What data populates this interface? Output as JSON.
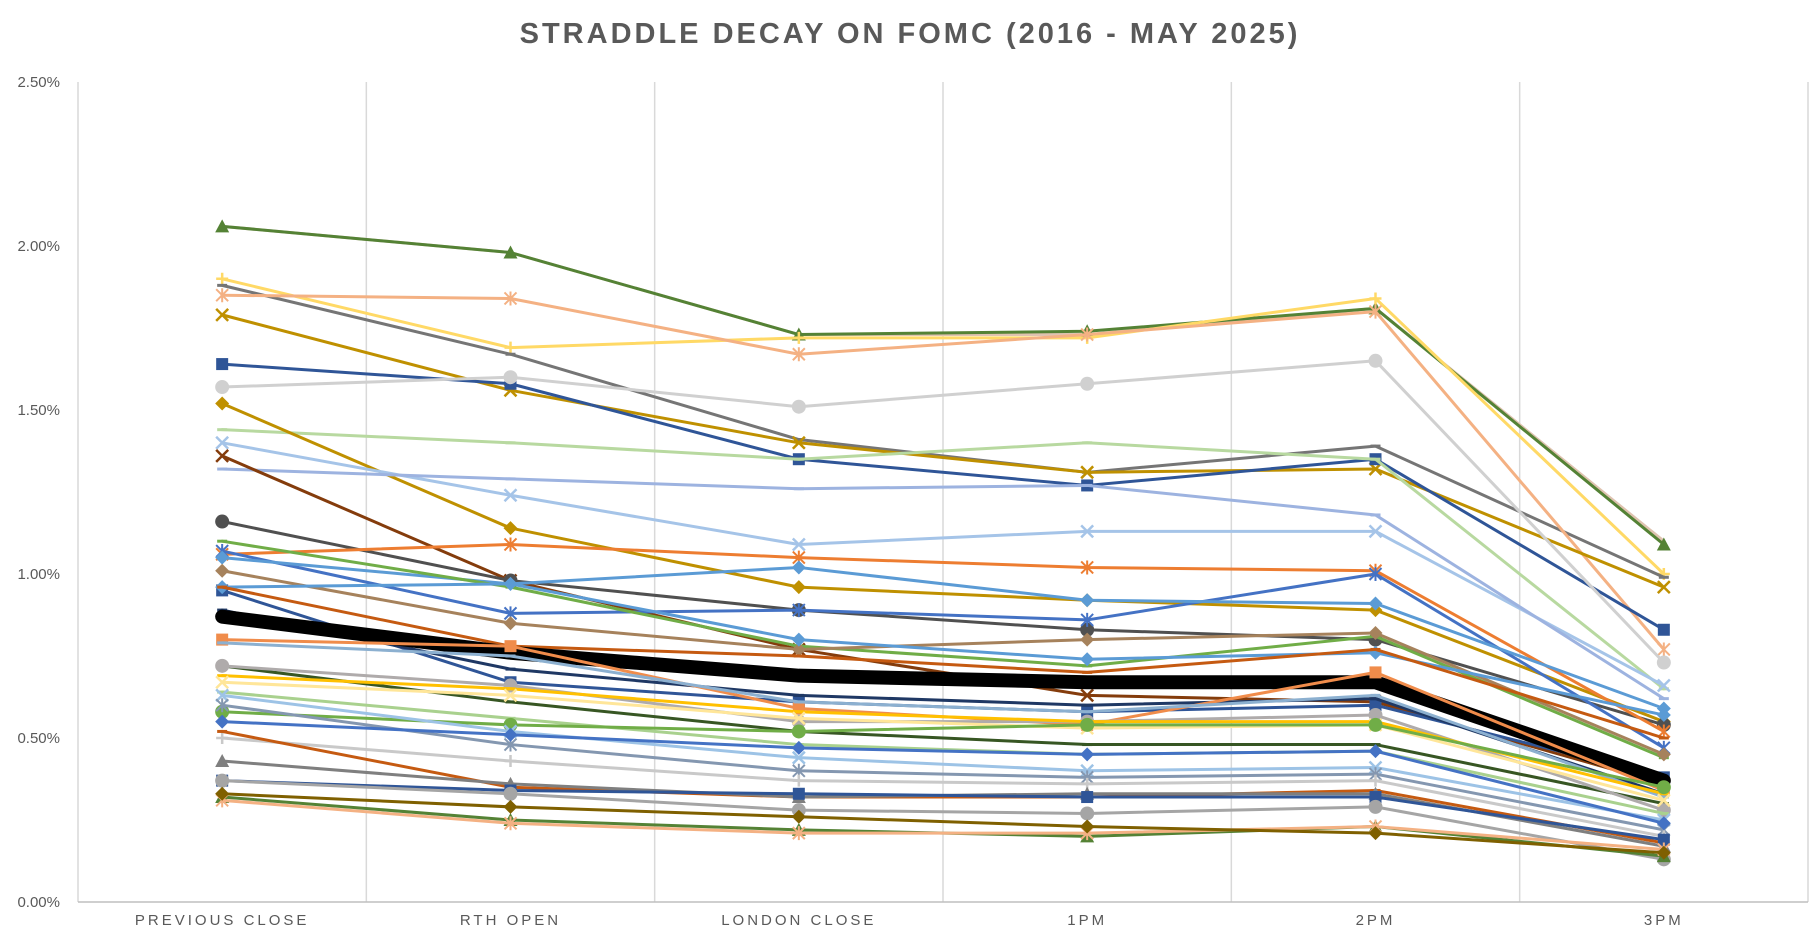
{
  "chart_data": {
    "type": "line",
    "title": "STRADDLE DECAY ON FOMC (2016 - MAY 2025)",
    "categories": [
      "PREVIOUS CLOSE",
      "RTH OPEN",
      "LONDON CLOSE",
      "1PM",
      "2PM",
      "3PM"
    ],
    "y_tick_labels": [
      "0.00%",
      "0.50%",
      "1.00%",
      "1.50%",
      "2.00%",
      "2.50%"
    ],
    "ylim": [
      0,
      2.5
    ],
    "y_unit": "percent",
    "grid": "vertical category lines",
    "legend": "none",
    "series": [
      {
        "color": "#DFC3B0",
        "marker": "none",
        "values": [
          2.06,
          1.98,
          1.73,
          1.73,
          1.81,
          1.1
        ]
      },
      {
        "color": "#548235",
        "marker": "triangle",
        "values": [
          2.06,
          1.98,
          1.73,
          1.74,
          1.81,
          1.09
        ]
      },
      {
        "color": "#FFD966",
        "marker": "plus",
        "values": [
          1.9,
          1.69,
          1.72,
          1.72,
          1.84,
          1.0
        ]
      },
      {
        "color": "#757575",
        "marker": "minus",
        "values": [
          1.88,
          1.67,
          1.41,
          1.31,
          1.39,
          0.99
        ]
      },
      {
        "color": "#F4B183",
        "marker": "asterisk",
        "values": [
          1.85,
          1.84,
          1.67,
          1.73,
          1.8,
          0.77
        ]
      },
      {
        "color": "#BF9000",
        "marker": "x",
        "values": [
          1.79,
          1.56,
          1.4,
          1.31,
          1.32,
          0.96
        ]
      },
      {
        "color": "#2F5597",
        "marker": "square",
        "values": [
          1.64,
          1.58,
          1.35,
          1.27,
          1.35,
          0.83
        ]
      },
      {
        "color": "#D0D0D0",
        "marker": "circle",
        "values": [
          1.57,
          1.6,
          1.51,
          1.58,
          1.65,
          0.73
        ]
      },
      {
        "color": "#B8D9A0",
        "marker": "minus",
        "values": [
          1.44,
          1.4,
          1.35,
          1.4,
          1.35,
          0.65
        ]
      },
      {
        "color": "#BF9000",
        "marker": "diamond",
        "values": [
          1.52,
          1.14,
          0.96,
          0.92,
          0.89,
          0.55
        ]
      },
      {
        "color": "#A5C4E8",
        "marker": "x",
        "values": [
          1.4,
          1.24,
          1.09,
          1.13,
          1.13,
          0.66
        ]
      },
      {
        "color": "#9DB3E0",
        "marker": "minus",
        "values": [
          1.32,
          1.29,
          1.26,
          1.27,
          1.18,
          0.62
        ]
      },
      {
        "color": "#843C0C",
        "marker": "x",
        "values": [
          1.36,
          0.98,
          0.77,
          0.63,
          0.61,
          0.36
        ]
      },
      {
        "color": "#505050",
        "marker": "circle",
        "values": [
          1.16,
          0.98,
          0.89,
          0.83,
          0.8,
          0.54
        ]
      },
      {
        "color": "#ED7D31",
        "marker": "asterisk",
        "values": [
          1.06,
          1.09,
          1.05,
          1.02,
          1.01,
          0.52
        ]
      },
      {
        "color": "#4472C4",
        "marker": "asterisk",
        "values": [
          1.07,
          0.88,
          0.89,
          0.86,
          1.0,
          0.47
        ]
      },
      {
        "color": "#5B9BD5",
        "marker": "diamond",
        "values": [
          1.05,
          0.97,
          1.02,
          0.92,
          0.91,
          0.59
        ]
      },
      {
        "color": "#70AD47",
        "marker": "minus",
        "values": [
          1.1,
          0.96,
          0.78,
          0.72,
          0.81,
          0.44
        ]
      },
      {
        "color": "#A6825C",
        "marker": "diamond",
        "values": [
          1.01,
          0.85,
          0.77,
          0.8,
          0.82,
          0.45
        ]
      },
      {
        "color": "#2F5597",
        "marker": "square",
        "values": [
          0.95,
          0.67,
          0.61,
          0.58,
          0.6,
          0.38
        ]
      },
      {
        "color": "#5B9BD5",
        "marker": "diamond",
        "values": [
          0.96,
          0.97,
          0.8,
          0.74,
          0.76,
          0.57
        ]
      },
      {
        "color": "#C55A11",
        "marker": "minus",
        "values": [
          0.96,
          0.78,
          0.75,
          0.7,
          0.77,
          0.5
        ]
      },
      {
        "color": "#1F3864",
        "marker": "minus",
        "values": [
          0.89,
          0.71,
          0.63,
          0.6,
          0.62,
          0.33
        ]
      },
      {
        "color": "#000000",
        "marker": "minus",
        "width": 14,
        "values": [
          0.87,
          0.76,
          0.69,
          0.67,
          0.67,
          0.37
        ]
      },
      {
        "color": "#F08C4B",
        "marker": "square",
        "values": [
          0.8,
          0.78,
          0.59,
          0.54,
          0.7,
          0.34
        ]
      },
      {
        "color": "#8CB0D0",
        "marker": "minus",
        "values": [
          0.79,
          0.75,
          0.61,
          0.58,
          0.63,
          0.32
        ]
      },
      {
        "color": "#375623",
        "marker": "minus",
        "values": [
          0.72,
          0.61,
          0.52,
          0.48,
          0.48,
          0.3
        ]
      },
      {
        "color": "#AFABAB",
        "marker": "circle",
        "values": [
          0.72,
          0.66,
          0.55,
          0.55,
          0.57,
          0.28
        ]
      },
      {
        "color": "#FFC000",
        "marker": "minus",
        "values": [
          0.69,
          0.65,
          0.58,
          0.55,
          0.55,
          0.33
        ]
      },
      {
        "color": "#FFE699",
        "marker": "x",
        "values": [
          0.67,
          0.63,
          0.56,
          0.53,
          0.54,
          0.31
        ]
      },
      {
        "color": "#A9D18E",
        "marker": "minus",
        "values": [
          0.64,
          0.56,
          0.48,
          0.45,
          0.46,
          0.27
        ]
      },
      {
        "color": "#70AD47",
        "marker": "circle",
        "values": [
          0.58,
          0.54,
          0.52,
          0.54,
          0.54,
          0.35
        ]
      },
      {
        "color": "#9DC3E6",
        "marker": "x",
        "values": [
          0.63,
          0.52,
          0.44,
          0.4,
          0.41,
          0.25
        ]
      },
      {
        "color": "#8497B0",
        "marker": "asterisk",
        "values": [
          0.6,
          0.48,
          0.4,
          0.38,
          0.39,
          0.22
        ]
      },
      {
        "color": "#4472C4",
        "marker": "diamond",
        "values": [
          0.55,
          0.51,
          0.47,
          0.45,
          0.46,
          0.24
        ]
      },
      {
        "color": "#C9C9C9",
        "marker": "plus",
        "values": [
          0.5,
          0.43,
          0.37,
          0.36,
          0.37,
          0.2
        ]
      },
      {
        "color": "#C55A11",
        "marker": "minus",
        "values": [
          0.52,
          0.35,
          0.32,
          0.32,
          0.34,
          0.18
        ]
      },
      {
        "color": "#7F7F7F",
        "marker": "triangle",
        "values": [
          0.43,
          0.36,
          0.32,
          0.33,
          0.33,
          0.17
        ]
      },
      {
        "color": "#2F5597",
        "marker": "square",
        "values": [
          0.37,
          0.34,
          0.33,
          0.32,
          0.32,
          0.19
        ]
      },
      {
        "color": "#A5A5A5",
        "marker": "circle",
        "values": [
          0.37,
          0.33,
          0.28,
          0.27,
          0.29,
          0.13
        ]
      },
      {
        "color": "#548235",
        "marker": "triangle",
        "values": [
          0.32,
          0.25,
          0.22,
          0.2,
          0.23,
          0.14
        ]
      },
      {
        "color": "#F4B183",
        "marker": "asterisk",
        "values": [
          0.31,
          0.24,
          0.21,
          0.21,
          0.23,
          0.16
        ]
      },
      {
        "color": "#7F6000",
        "marker": "diamond",
        "values": [
          0.33,
          0.29,
          0.26,
          0.23,
          0.21,
          0.15
        ]
      }
    ]
  }
}
